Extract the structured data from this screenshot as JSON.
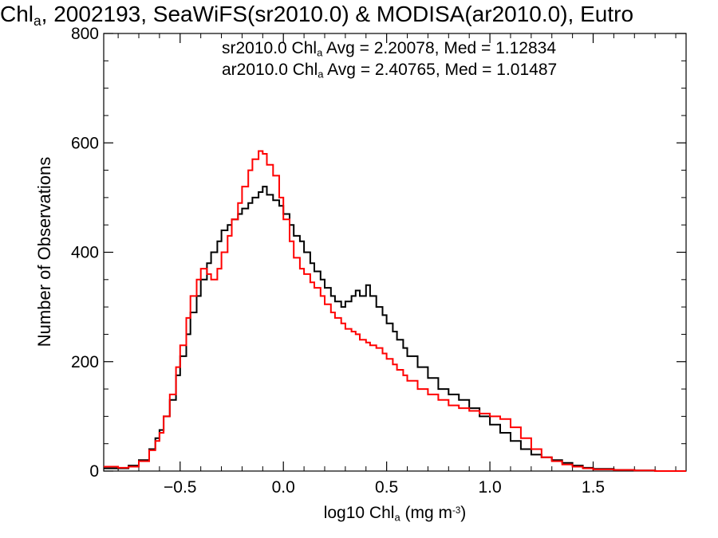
{
  "chart_data": {
    "type": "line",
    "title": {
      "pre": "Chl",
      "sub": "a",
      "post": ", 2002193, SeaWiFS(sr2010.0) & MODISA(ar2010.0), Eutro"
    },
    "xlabel": {
      "pre": "log10 Chl",
      "sub": "a",
      "mid": " (mg m",
      "sup": "-3",
      "post": ")"
    },
    "ylabel": "Number of Observations",
    "xlim": [
      -0.87,
      1.95
    ],
    "ylim": [
      0,
      800
    ],
    "x_ticks": [
      -0.5,
      0.0,
      0.5,
      1.0,
      1.5
    ],
    "x_tick_labels": [
      "−0.5",
      "0.0",
      "0.5",
      "1.0",
      "1.5"
    ],
    "y_ticks": [
      0,
      200,
      400,
      600,
      800
    ],
    "y_tick_labels": [
      "0",
      "200",
      "400",
      "600",
      "800"
    ],
    "legend": {
      "placement": "top",
      "entries": [
        {
          "pre": "sr2010.0 Chl",
          "sub": "a",
          "post": " Avg = 2.20078, Med = 1.12834",
          "color": "#000000"
        },
        {
          "pre": "ar2010.0 Chl",
          "sub": "a",
          "post": " Avg = 2.40765, Med = 1.01487",
          "color": "#ff0000"
        }
      ]
    },
    "series": [
      {
        "color": "#000000",
        "x": [
          -0.87,
          -0.8,
          -0.75,
          -0.7,
          -0.65,
          -0.62,
          -0.6,
          -0.58,
          -0.55,
          -0.52,
          -0.5,
          -0.47,
          -0.45,
          -0.42,
          -0.4,
          -0.37,
          -0.35,
          -0.32,
          -0.3,
          -0.27,
          -0.25,
          -0.22,
          -0.2,
          -0.17,
          -0.15,
          -0.12,
          -0.1,
          -0.08,
          -0.05,
          -0.02,
          0.0,
          0.03,
          0.05,
          0.08,
          0.1,
          0.13,
          0.15,
          0.18,
          0.2,
          0.23,
          0.25,
          0.28,
          0.3,
          0.33,
          0.35,
          0.37,
          0.4,
          0.42,
          0.45,
          0.48,
          0.5,
          0.53,
          0.55,
          0.58,
          0.6,
          0.65,
          0.7,
          0.75,
          0.8,
          0.85,
          0.9,
          0.95,
          1.0,
          1.05,
          1.1,
          1.15,
          1.2,
          1.25,
          1.3,
          1.35,
          1.4,
          1.45,
          1.5,
          1.6,
          1.7,
          1.8,
          1.95
        ],
        "y": [
          5,
          5,
          10,
          20,
          40,
          60,
          75,
          100,
          130,
          175,
          210,
          250,
          290,
          320,
          350,
          380,
          400,
          420,
          440,
          450,
          460,
          470,
          480,
          490,
          500,
          510,
          520,
          505,
          495,
          485,
          470,
          450,
          430,
          420,
          400,
          380,
          365,
          350,
          335,
          320,
          310,
          300,
          310,
          320,
          330,
          320,
          340,
          320,
          300,
          285,
          270,
          255,
          240,
          225,
          210,
          190,
          170,
          150,
          140,
          130,
          115,
          100,
          85,
          70,
          55,
          40,
          30,
          25,
          20,
          15,
          10,
          6,
          4,
          2,
          1,
          0,
          0
        ]
      },
      {
        "color": "#ff0000",
        "x": [
          -0.87,
          -0.8,
          -0.75,
          -0.7,
          -0.65,
          -0.62,
          -0.6,
          -0.58,
          -0.55,
          -0.52,
          -0.5,
          -0.47,
          -0.45,
          -0.42,
          -0.4,
          -0.37,
          -0.35,
          -0.32,
          -0.3,
          -0.27,
          -0.25,
          -0.22,
          -0.2,
          -0.17,
          -0.15,
          -0.12,
          -0.1,
          -0.08,
          -0.05,
          -0.02,
          0.0,
          0.03,
          0.05,
          0.08,
          0.1,
          0.13,
          0.15,
          0.18,
          0.2,
          0.23,
          0.25,
          0.28,
          0.3,
          0.33,
          0.35,
          0.37,
          0.4,
          0.42,
          0.45,
          0.48,
          0.5,
          0.53,
          0.55,
          0.58,
          0.6,
          0.65,
          0.7,
          0.75,
          0.8,
          0.85,
          0.9,
          0.95,
          1.0,
          1.05,
          1.1,
          1.15,
          1.2,
          1.25,
          1.3,
          1.35,
          1.4,
          1.45,
          1.5,
          1.6,
          1.7,
          1.8,
          1.95
        ],
        "y": [
          8,
          6,
          8,
          18,
          38,
          55,
          70,
          100,
          140,
          190,
          230,
          280,
          320,
          350,
          370,
          360,
          350,
          370,
          400,
          430,
          460,
          490,
          520,
          550,
          570,
          585,
          580,
          560,
          540,
          500,
          460,
          420,
          390,
          370,
          360,
          345,
          335,
          320,
          305,
          290,
          280,
          270,
          260,
          255,
          250,
          240,
          235,
          230,
          225,
          215,
          205,
          195,
          185,
          175,
          165,
          150,
          140,
          130,
          120,
          115,
          110,
          105,
          100,
          95,
          80,
          60,
          40,
          25,
          18,
          12,
          8,
          5,
          3,
          2,
          1,
          0,
          0
        ]
      }
    ]
  }
}
